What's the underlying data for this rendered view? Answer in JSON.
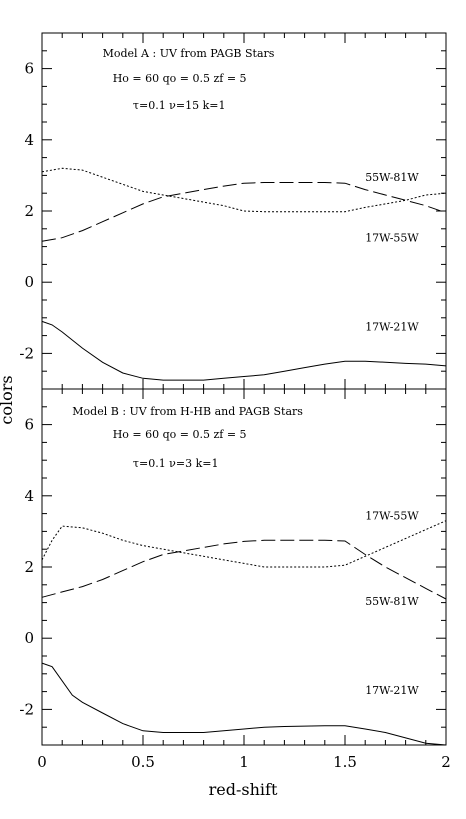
{
  "xlabel": "red-shift",
  "ylabel": "colors",
  "chart_data": [
    {
      "type": "line",
      "annotations": [
        "Model A : UV from  PAGB Stars",
        "Ho = 60  qo = 0.5  zf = 5",
        "τ=0.1  ν=15  k=1"
      ],
      "xlim": [
        0,
        2
      ],
      "ylim": [
        -3,
        7
      ],
      "xticks": [
        "0",
        "0.5",
        "1",
        "1.5",
        "2"
      ],
      "yticks": [
        "-2",
        "0",
        "2",
        "4",
        "6"
      ],
      "series": [
        {
          "name": "55W-81W",
          "style": "dotted",
          "x": [
            0,
            0.1,
            0.2,
            0.3,
            0.4,
            0.5,
            0.6,
            0.7,
            0.8,
            0.9,
            1.0,
            1.1,
            1.2,
            1.3,
            1.4,
            1.5,
            1.6,
            1.7,
            1.8,
            1.9,
            2.0
          ],
          "y": [
            3.1,
            3.2,
            3.15,
            2.95,
            2.75,
            2.55,
            2.45,
            2.35,
            2.25,
            2.15,
            2.0,
            1.98,
            1.98,
            1.98,
            1.98,
            1.98,
            2.1,
            2.2,
            2.3,
            2.45,
            2.5
          ]
        },
        {
          "name": "17W-55W",
          "style": "dashed",
          "x": [
            0,
            0.1,
            0.2,
            0.3,
            0.4,
            0.5,
            0.6,
            0.7,
            0.8,
            0.9,
            1.0,
            1.1,
            1.2,
            1.3,
            1.4,
            1.5,
            1.6,
            1.7,
            1.8,
            1.9,
            2.0
          ],
          "y": [
            1.15,
            1.25,
            1.45,
            1.7,
            1.95,
            2.2,
            2.4,
            2.5,
            2.6,
            2.7,
            2.78,
            2.8,
            2.8,
            2.8,
            2.8,
            2.78,
            2.6,
            2.45,
            2.3,
            2.15,
            1.95
          ]
        },
        {
          "name": "17W-21W",
          "style": "solid",
          "x": [
            0,
            0.05,
            0.1,
            0.2,
            0.3,
            0.4,
            0.5,
            0.6,
            0.7,
            0.8,
            0.9,
            1.0,
            1.1,
            1.2,
            1.3,
            1.4,
            1.5,
            1.6,
            1.7,
            1.8,
            1.9,
            2.0
          ],
          "y": [
            -1.1,
            -1.2,
            -1.4,
            -1.85,
            -2.25,
            -2.55,
            -2.7,
            -2.75,
            -2.75,
            -2.75,
            -2.7,
            -2.65,
            -2.6,
            -2.5,
            -2.4,
            -2.3,
            -2.22,
            -2.22,
            -2.25,
            -2.28,
            -2.3,
            -2.35
          ]
        }
      ],
      "series_labels": [
        {
          "text": "55W-81W",
          "x": 1.6,
          "y": 2.95
        },
        {
          "text": "17W-55W",
          "x": 1.6,
          "y": 1.25
        },
        {
          "text": "17W-21W",
          "x": 1.6,
          "y": -1.25
        }
      ]
    },
    {
      "type": "line",
      "annotations": [
        "Model B : UV from H-HB and PAGB Stars",
        "Ho = 60  qo = 0.5  zf = 5",
        "τ=0.1  ν=3  k=1"
      ],
      "xlim": [
        0,
        2
      ],
      "ylim": [
        -3,
        7
      ],
      "xticks": [
        "0",
        "0.5",
        "1",
        "1.5",
        "2"
      ],
      "yticks": [
        "-2",
        "0",
        "2",
        "4",
        "6"
      ],
      "series": [
        {
          "name": "17W-55W",
          "style": "dotted",
          "x": [
            0,
            0.05,
            0.1,
            0.2,
            0.3,
            0.4,
            0.5,
            0.6,
            0.7,
            0.8,
            0.9,
            1.0,
            1.1,
            1.2,
            1.3,
            1.4,
            1.5,
            1.6,
            1.7,
            1.8,
            1.9,
            2.0
          ],
          "y": [
            2.2,
            2.75,
            3.15,
            3.1,
            2.95,
            2.75,
            2.6,
            2.5,
            2.4,
            2.3,
            2.2,
            2.1,
            2.0,
            2.0,
            2.0,
            2.0,
            2.05,
            2.3,
            2.55,
            2.8,
            3.05,
            3.3
          ]
        },
        {
          "name": "55W-81W",
          "style": "dashed",
          "x": [
            0,
            0.1,
            0.2,
            0.3,
            0.4,
            0.5,
            0.6,
            0.7,
            0.8,
            0.9,
            1.0,
            1.1,
            1.2,
            1.3,
            1.4,
            1.5,
            1.6,
            1.7,
            1.8,
            1.9,
            2.0
          ],
          "y": [
            1.15,
            1.3,
            1.45,
            1.65,
            1.9,
            2.15,
            2.35,
            2.45,
            2.55,
            2.65,
            2.72,
            2.75,
            2.75,
            2.75,
            2.75,
            2.73,
            2.35,
            2.0,
            1.7,
            1.4,
            1.1
          ]
        },
        {
          "name": "17W-21W",
          "style": "solid",
          "x": [
            0,
            0.05,
            0.15,
            0.2,
            0.3,
            0.4,
            0.5,
            0.6,
            0.7,
            0.8,
            0.9,
            1.0,
            1.1,
            1.2,
            1.3,
            1.4,
            1.5,
            1.6,
            1.7,
            1.8,
            1.9,
            2.0
          ],
          "y": [
            -0.7,
            -0.8,
            -1.6,
            -1.8,
            -2.1,
            -2.4,
            -2.6,
            -2.65,
            -2.65,
            -2.65,
            -2.6,
            -2.55,
            -2.5,
            -2.48,
            -2.47,
            -2.46,
            -2.46,
            -2.55,
            -2.65,
            -2.8,
            -2.95,
            -3.0
          ]
        }
      ],
      "series_labels": [
        {
          "text": "17W-55W",
          "x": 1.6,
          "y": 3.45
        },
        {
          "text": "55W-81W",
          "x": 1.6,
          "y": 1.05
        },
        {
          "text": "17W-21W",
          "x": 1.6,
          "y": -1.45
        }
      ]
    }
  ]
}
